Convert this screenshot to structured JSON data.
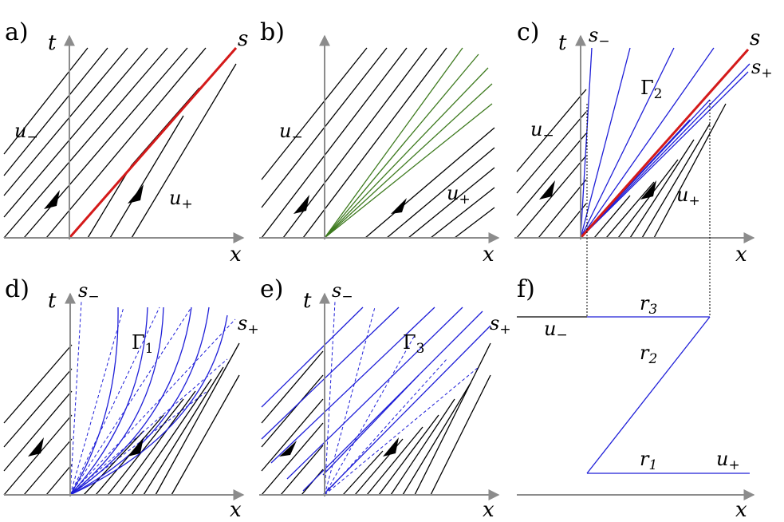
{
  "panels": {
    "a": {
      "label": "a)",
      "t": "t",
      "x": "x",
      "u_minus": "u",
      "u_minus_sub": "−",
      "u_plus": "u",
      "u_plus_sub": "+",
      "s": "s"
    },
    "b": {
      "label": "b)",
      "x": "x",
      "u_minus": "u",
      "u_minus_sub": "−",
      "u_plus": "u",
      "u_plus_sub": "+"
    },
    "c": {
      "label": "c)",
      "t": "t",
      "x": "x",
      "s_minus": "s",
      "s_minus_sub": "−",
      "s": "s",
      "s_plus": "s",
      "s_plus_sub": "+",
      "gamma": "Γ",
      "gamma_sub": "2",
      "u_minus": "u",
      "u_minus_sub": "−",
      "u_plus": "u",
      "u_plus_sub": "+"
    },
    "d": {
      "label": "d)",
      "t": "t",
      "x": "x",
      "s_minus": "s",
      "s_minus_sub": "−",
      "s_plus": "s",
      "s_plus_sub": "+",
      "gamma": "Γ",
      "gamma_sub": "1"
    },
    "e": {
      "label": "e)",
      "t": "t",
      "x": "x",
      "s_minus": "s",
      "s_minus_sub": "−",
      "s_plus": "s",
      "s_plus_sub": "+",
      "gamma": "Γ",
      "gamma_sub": "3"
    },
    "f": {
      "label": "f)",
      "x": "x",
      "r3": "r",
      "r3_sub": "3",
      "r2": "r",
      "r2_sub": "2",
      "r1": "r",
      "r1_sub": "1",
      "u_minus": "u",
      "u_minus_sub": "−",
      "u_plus": "u",
      "u_plus_sub": "+"
    }
  }
}
